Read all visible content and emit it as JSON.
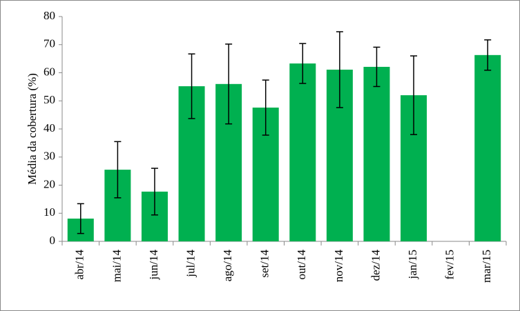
{
  "chart_data": {
    "type": "bar",
    "y_label": "Média da cobertura (%)",
    "categories": [
      "abr/14",
      "mai/14",
      "jun/14",
      "jul/14",
      "ago/14",
      "set/14",
      "out/14",
      "nov/14",
      "dez/14",
      "jan/15",
      "fev/15",
      "mar/15"
    ],
    "values": [
      8.1,
      25.5,
      17.7,
      55.2,
      56,
      47.6,
      63.3,
      61.1,
      62.1,
      52,
      null,
      66.3
    ],
    "errors": [
      5.3,
      10,
      8.3,
      11.5,
      14.2,
      9.8,
      7.1,
      13.5,
      7,
      14,
      null,
      5.4
    ],
    "color": "#00b050",
    "ylim": [
      0,
      80
    ],
    "yticks": [
      0,
      10,
      20,
      30,
      40,
      50,
      60,
      70,
      80
    ],
    "grid": false
  }
}
